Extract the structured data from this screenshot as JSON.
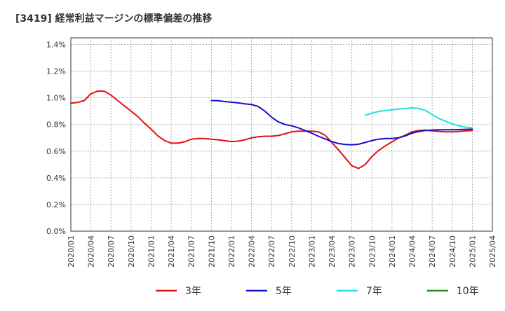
{
  "chart_data": {
    "type": "line",
    "title": "[3419]  経常利益マージンの標準偏差の推移",
    "xlabel": "",
    "ylabel": "",
    "x_ticks": [
      "2020/01",
      "2020/04",
      "2020/07",
      "2020/10",
      "2021/01",
      "2021/04",
      "2021/07",
      "2021/10",
      "2022/01",
      "2022/04",
      "2022/07",
      "2022/10",
      "2023/01",
      "2023/04",
      "2023/07",
      "2023/10",
      "2024/01",
      "2024/04",
      "2024/07",
      "2024/10",
      "2025/01",
      "2025/04"
    ],
    "y_ticks": [
      "0.0%",
      "0.2%",
      "0.4%",
      "0.6%",
      "0.8%",
      "1.0%",
      "1.2%",
      "1.4%"
    ],
    "x_range": [
      "2020/01",
      "2025/04"
    ],
    "ylim": [
      0,
      1.45
    ],
    "grid": true,
    "legend_position": "bottom",
    "series": [
      {
        "name": "3年",
        "color": "#dd1111",
        "points": [
          [
            "2020/01",
            0.96
          ],
          [
            "2020/02",
            0.965
          ],
          [
            "2020/03",
            0.98
          ],
          [
            "2020/04",
            1.03
          ],
          [
            "2020/05",
            1.05
          ],
          [
            "2020/06",
            1.05
          ],
          [
            "2020/07",
            1.02
          ],
          [
            "2020/08",
            0.98
          ],
          [
            "2020/09",
            0.94
          ],
          [
            "2020/10",
            0.9
          ],
          [
            "2020/11",
            0.86
          ],
          [
            "2020/12",
            0.81
          ],
          [
            "2021/01",
            0.765
          ],
          [
            "2021/02",
            0.715
          ],
          [
            "2021/03",
            0.68
          ],
          [
            "2021/04",
            0.66
          ],
          [
            "2021/05",
            0.66
          ],
          [
            "2021/06",
            0.67
          ],
          [
            "2021/07",
            0.69
          ],
          [
            "2021/08",
            0.695
          ],
          [
            "2021/09",
            0.695
          ],
          [
            "2021/10",
            0.69
          ],
          [
            "2021/11",
            0.685
          ],
          [
            "2021/12",
            0.678
          ],
          [
            "2022/01",
            0.672
          ],
          [
            "2022/02",
            0.675
          ],
          [
            "2022/03",
            0.685
          ],
          [
            "2022/04",
            0.7
          ],
          [
            "2022/05",
            0.708
          ],
          [
            "2022/06",
            0.712
          ],
          [
            "2022/07",
            0.712
          ],
          [
            "2022/08",
            0.717
          ],
          [
            "2022/09",
            0.73
          ],
          [
            "2022/10",
            0.745
          ],
          [
            "2022/11",
            0.75
          ],
          [
            "2022/12",
            0.75
          ],
          [
            "2023/01",
            0.75
          ],
          [
            "2023/02",
            0.745
          ],
          [
            "2023/03",
            0.72
          ],
          [
            "2023/04",
            0.665
          ],
          [
            "2023/05",
            0.61
          ],
          [
            "2023/06",
            0.55
          ],
          [
            "2023/07",
            0.49
          ],
          [
            "2023/08",
            0.47
          ],
          [
            "2023/09",
            0.5
          ],
          [
            "2023/10",
            0.56
          ],
          [
            "2023/11",
            0.605
          ],
          [
            "2023/12",
            0.64
          ],
          [
            "2024/01",
            0.67
          ],
          [
            "2024/02",
            0.7
          ],
          [
            "2024/03",
            0.72
          ],
          [
            "2024/04",
            0.745
          ],
          [
            "2024/05",
            0.755
          ],
          [
            "2024/06",
            0.758
          ],
          [
            "2024/07",
            0.752
          ],
          [
            "2024/08",
            0.748
          ],
          [
            "2024/09",
            0.745
          ],
          [
            "2024/10",
            0.745
          ],
          [
            "2024/11",
            0.748
          ],
          [
            "2024/12",
            0.752
          ],
          [
            "2025/01",
            0.755
          ]
        ]
      },
      {
        "name": "5年",
        "color": "#1111cc",
        "points": [
          [
            "2021/10",
            0.98
          ],
          [
            "2021/11",
            0.978
          ],
          [
            "2021/12",
            0.972
          ],
          [
            "2022/01",
            0.967
          ],
          [
            "2022/02",
            0.962
          ],
          [
            "2022/03",
            0.955
          ],
          [
            "2022/04",
            0.95
          ],
          [
            "2022/05",
            0.935
          ],
          [
            "2022/06",
            0.9
          ],
          [
            "2022/07",
            0.855
          ],
          [
            "2022/08",
            0.82
          ],
          [
            "2022/09",
            0.8
          ],
          [
            "2022/10",
            0.79
          ],
          [
            "2022/11",
            0.775
          ],
          [
            "2022/12",
            0.755
          ],
          [
            "2023/01",
            0.735
          ],
          [
            "2023/02",
            0.712
          ],
          [
            "2023/03",
            0.692
          ],
          [
            "2023/04",
            0.672
          ],
          [
            "2023/05",
            0.657
          ],
          [
            "2023/06",
            0.65
          ],
          [
            "2023/07",
            0.648
          ],
          [
            "2023/08",
            0.652
          ],
          [
            "2023/09",
            0.665
          ],
          [
            "2023/10",
            0.68
          ],
          [
            "2023/11",
            0.69
          ],
          [
            "2023/12",
            0.695
          ],
          [
            "2024/01",
            0.695
          ],
          [
            "2024/02",
            0.7
          ],
          [
            "2024/03",
            0.715
          ],
          [
            "2024/04",
            0.735
          ],
          [
            "2024/05",
            0.748
          ],
          [
            "2024/06",
            0.755
          ],
          [
            "2024/07",
            0.758
          ],
          [
            "2024/08",
            0.76
          ],
          [
            "2024/09",
            0.76
          ],
          [
            "2024/10",
            0.76
          ],
          [
            "2024/11",
            0.762
          ],
          [
            "2024/12",
            0.764
          ],
          [
            "2025/01",
            0.765
          ]
        ]
      },
      {
        "name": "7年",
        "color": "#22e0e8",
        "points": [
          [
            "2023/09",
            0.87
          ],
          [
            "2023/10",
            0.885
          ],
          [
            "2023/11",
            0.898
          ],
          [
            "2023/12",
            0.905
          ],
          [
            "2024/01",
            0.91
          ],
          [
            "2024/02",
            0.915
          ],
          [
            "2024/03",
            0.92
          ],
          [
            "2024/04",
            0.925
          ],
          [
            "2024/05",
            0.92
          ],
          [
            "2024/06",
            0.905
          ],
          [
            "2024/07",
            0.875
          ],
          [
            "2024/08",
            0.845
          ],
          [
            "2024/09",
            0.825
          ],
          [
            "2024/10",
            0.805
          ],
          [
            "2024/11",
            0.79
          ],
          [
            "2024/12",
            0.78
          ],
          [
            "2025/01",
            0.775
          ]
        ]
      },
      {
        "name": "10年",
        "color": "#228822",
        "points": []
      }
    ]
  }
}
